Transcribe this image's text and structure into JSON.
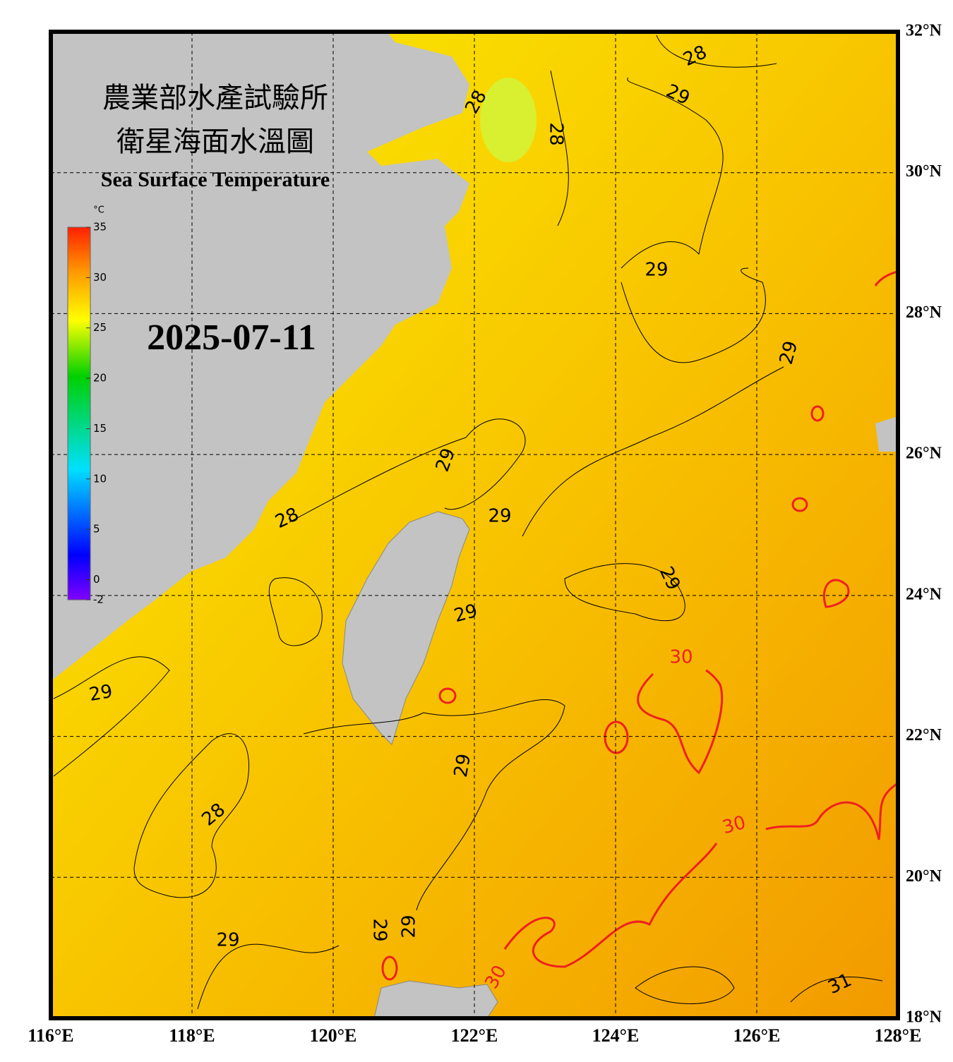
{
  "header": {
    "title_zh_1": "農業部水產試驗所",
    "title_zh_2": "衛星海面水溫圖",
    "title_en": "Sea Surface Temperature",
    "date": "2025-07-11"
  },
  "colorbar": {
    "unit": "°C",
    "range": [
      -2,
      35
    ],
    "ticks": [
      -2,
      0,
      5,
      10,
      15,
      20,
      25,
      30,
      35
    ]
  },
  "map": {
    "lon_range": [
      116,
      128
    ],
    "lat_range": [
      18,
      32
    ],
    "lon_ticks": [
      {
        "value": 116,
        "label": "116°E"
      },
      {
        "value": 118,
        "label": "118°E"
      },
      {
        "value": 120,
        "label": "120°E"
      },
      {
        "value": 122,
        "label": "122°E"
      },
      {
        "value": 124,
        "label": "124°E"
      },
      {
        "value": 126,
        "label": "126°E"
      },
      {
        "value": 128,
        "label": "128°E"
      }
    ],
    "lat_ticks": [
      {
        "value": 18,
        "label": "18°N"
      },
      {
        "value": 20,
        "label": "20°N"
      },
      {
        "value": 22,
        "label": "22°N"
      },
      {
        "value": 24,
        "label": "24°N"
      },
      {
        "value": 26,
        "label": "26°N"
      },
      {
        "value": 28,
        "label": "28°N"
      },
      {
        "value": 30,
        "label": "30°N"
      },
      {
        "value": 32,
        "label": "32°N"
      }
    ],
    "contour_labels": [
      "28",
      "29",
      "28",
      "28",
      "29",
      "29",
      "29",
      "29",
      "28",
      "29",
      "29",
      "30",
      "29",
      "29",
      "28",
      "30",
      "29",
      "29",
      "29",
      "30",
      "31"
    ]
  }
}
